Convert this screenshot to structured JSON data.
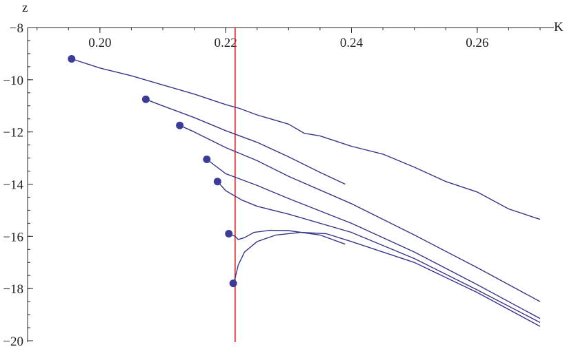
{
  "chart_data": {
    "type": "line",
    "xlabel": "K",
    "ylabel": "z",
    "xlim": [
      0.1885,
      0.27
    ],
    "ylim": [
      -20,
      -8
    ],
    "x_ticks": [
      {
        "value": 0.2,
        "label": "0.20"
      },
      {
        "value": 0.22,
        "label": "0.22"
      },
      {
        "value": 0.24,
        "label": "0.24"
      },
      {
        "value": 0.26,
        "label": "0.26"
      }
    ],
    "y_ticks": [
      {
        "value": -8,
        "label": "−8"
      },
      {
        "value": -10,
        "label": "−10"
      },
      {
        "value": -12,
        "label": "−12"
      },
      {
        "value": -14,
        "label": "−14"
      },
      {
        "value": -16,
        "label": "−16"
      },
      {
        "value": -18,
        "label": "−18"
      },
      {
        "value": -20,
        "label": "−20"
      }
    ],
    "x_minor_step": 0.005,
    "y_minor_step": 0.5,
    "vertical_line": {
      "x": 0.2215,
      "color": "#e02020"
    },
    "line_color": "#34348a",
    "marker_color": "#3b3b9a",
    "series": [
      {
        "start": [
          0.1955,
          -9.2
        ],
        "points": [
          [
            0.1955,
            -9.2
          ],
          [
            0.2,
            -9.55
          ],
          [
            0.205,
            -9.85
          ],
          [
            0.21,
            -10.2
          ],
          [
            0.215,
            -10.55
          ],
          [
            0.22,
            -10.95
          ],
          [
            0.2222,
            -11.1
          ],
          [
            0.225,
            -11.35
          ],
          [
            0.23,
            -11.7
          ],
          [
            0.2325,
            -12.05
          ],
          [
            0.235,
            -12.15
          ],
          [
            0.2375,
            -12.35
          ],
          [
            0.24,
            -12.55
          ],
          [
            0.245,
            -12.85
          ],
          [
            0.25,
            -13.35
          ],
          [
            0.255,
            -13.9
          ],
          [
            0.26,
            -14.3
          ],
          [
            0.265,
            -14.95
          ],
          [
            0.27,
            -15.35
          ]
        ]
      },
      {
        "start": [
          0.2073,
          -10.75
        ],
        "points": [
          [
            0.2073,
            -10.75
          ],
          [
            0.21,
            -11.0
          ],
          [
            0.215,
            -11.45
          ],
          [
            0.22,
            -11.95
          ],
          [
            0.225,
            -12.4
          ],
          [
            0.23,
            -12.95
          ],
          [
            0.235,
            -13.55
          ],
          [
            0.239,
            -14.0
          ]
        ]
      },
      {
        "start": [
          0.2127,
          -11.75
        ],
        "points": [
          [
            0.2127,
            -11.75
          ],
          [
            0.215,
            -12.0
          ],
          [
            0.22,
            -12.6
          ],
          [
            0.225,
            -13.1
          ],
          [
            0.23,
            -13.7
          ],
          [
            0.24,
            -14.75
          ],
          [
            0.25,
            -15.95
          ],
          [
            0.26,
            -17.2
          ],
          [
            0.27,
            -18.5
          ]
        ]
      },
      {
        "start": [
          0.217,
          -13.05
        ],
        "points": [
          [
            0.217,
            -13.05
          ],
          [
            0.22,
            -13.6
          ],
          [
            0.225,
            -14.05
          ],
          [
            0.23,
            -14.55
          ],
          [
            0.24,
            -15.5
          ],
          [
            0.25,
            -16.6
          ],
          [
            0.26,
            -17.85
          ],
          [
            0.27,
            -19.15
          ]
        ]
      },
      {
        "start": [
          0.2187,
          -13.9
        ],
        "points": [
          [
            0.2187,
            -13.9
          ],
          [
            0.22,
            -14.25
          ],
          [
            0.2225,
            -14.6
          ],
          [
            0.225,
            -14.85
          ],
          [
            0.23,
            -15.15
          ],
          [
            0.24,
            -15.85
          ],
          [
            0.25,
            -16.85
          ],
          [
            0.26,
            -18.05
          ],
          [
            0.27,
            -19.3
          ]
        ]
      },
      {
        "start": [
          0.2205,
          -15.9
        ],
        "points": [
          [
            0.2205,
            -15.9
          ],
          [
            0.2215,
            -16.0
          ],
          [
            0.222,
            -16.12
          ],
          [
            0.223,
            -16.05
          ],
          [
            0.2245,
            -15.85
          ],
          [
            0.227,
            -15.77
          ],
          [
            0.23,
            -15.78
          ],
          [
            0.235,
            -15.95
          ],
          [
            0.239,
            -16.3
          ]
        ]
      },
      {
        "start": [
          0.2212,
          -17.8
        ],
        "points": [
          [
            0.2212,
            -17.8
          ],
          [
            0.2215,
            -17.6
          ],
          [
            0.222,
            -17.1
          ],
          [
            0.223,
            -16.6
          ],
          [
            0.225,
            -16.2
          ],
          [
            0.228,
            -15.95
          ],
          [
            0.232,
            -15.85
          ],
          [
            0.236,
            -15.9
          ],
          [
            0.24,
            -16.2
          ],
          [
            0.25,
            -17.0
          ],
          [
            0.26,
            -18.15
          ],
          [
            0.27,
            -19.45
          ]
        ]
      }
    ]
  }
}
